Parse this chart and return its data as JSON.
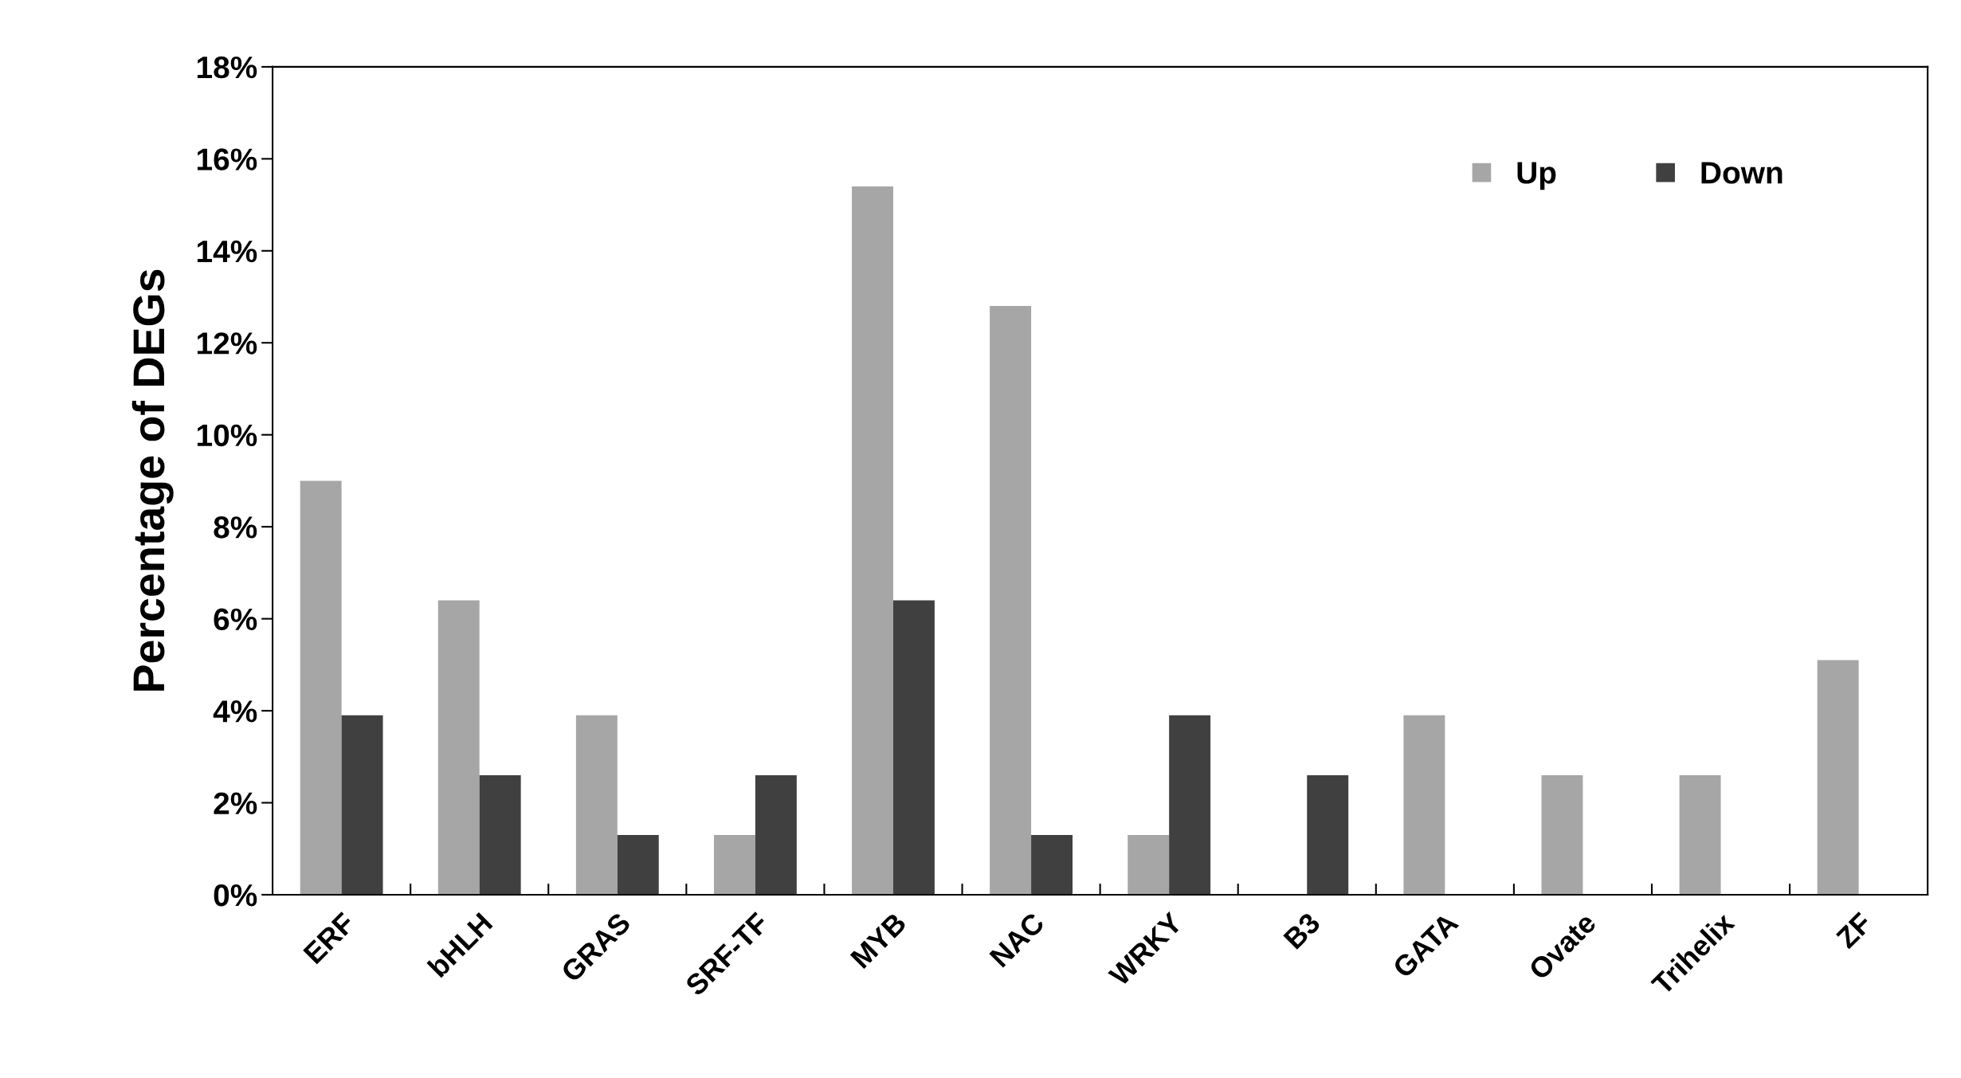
{
  "chart_data": {
    "type": "bar",
    "ylabel": "Percentage of DEGs",
    "categories": [
      "ERF",
      "bHLH",
      "GRAS",
      "SRF-TF",
      "MYB",
      "NAC",
      "WRKY",
      "B3",
      "GATA",
      "Ovate",
      "Trihelix",
      "ZF"
    ],
    "series": [
      {
        "name": "Up",
        "color": "#a6a6a6",
        "values": [
          9.0,
          6.4,
          3.9,
          1.3,
          15.4,
          12.8,
          1.3,
          0,
          3.9,
          2.6,
          2.6,
          5.1
        ]
      },
      {
        "name": "Down",
        "color": "#404040",
        "values": [
          3.9,
          2.6,
          1.3,
          2.6,
          6.4,
          1.3,
          3.9,
          2.6,
          0,
          0,
          0,
          0
        ]
      }
    ],
    "ylim": [
      0,
      18
    ],
    "yticks": [
      {
        "value": 0,
        "label": "0%"
      },
      {
        "value": 2,
        "label": "2%"
      },
      {
        "value": 4,
        "label": "4%"
      },
      {
        "value": 6,
        "label": "6%"
      },
      {
        "value": 8,
        "label": "8%"
      },
      {
        "value": 10,
        "label": "10%"
      },
      {
        "value": 12,
        "label": "12%"
      },
      {
        "value": 14,
        "label": "14%"
      },
      {
        "value": 16,
        "label": "16%"
      },
      {
        "value": 18,
        "label": "18%"
      }
    ],
    "grid": false,
    "legend": "top right"
  }
}
